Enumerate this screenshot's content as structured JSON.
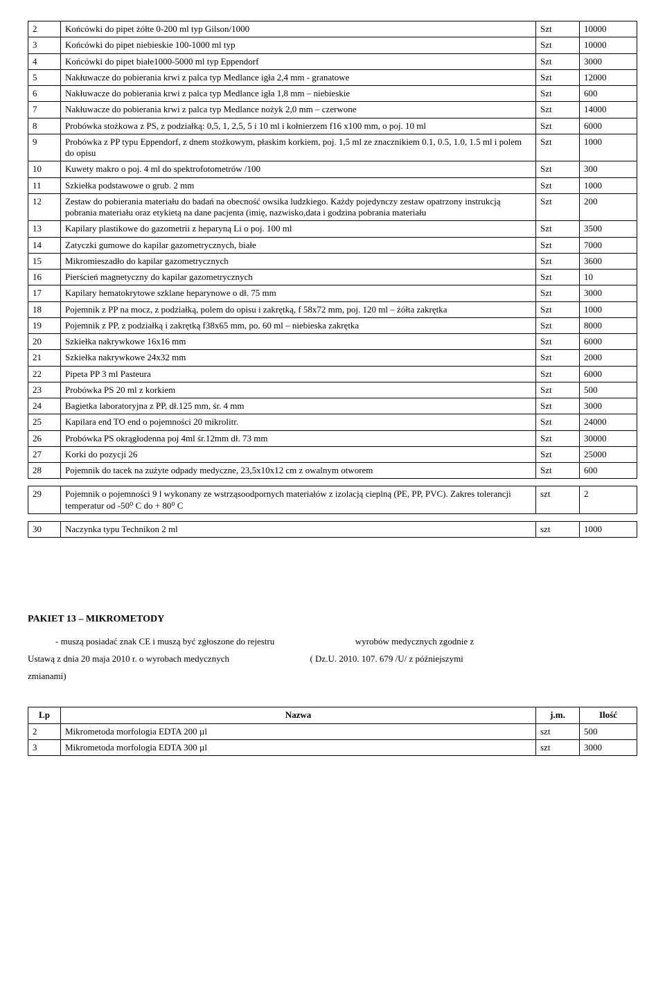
{
  "table1": {
    "unit_label": "Szt",
    "rows": [
      {
        "n": "2",
        "desc": "Końcówki do pipet żółte 0-200 ml typ Gilson/1000",
        "u": "Szt",
        "q": "10000"
      },
      {
        "n": "3",
        "desc": "Końcówki do pipet niebieskie 100-1000 ml typ",
        "u": "Szt",
        "q": "10000"
      },
      {
        "n": "4",
        "desc": "Końcówki do pipet białe1000-5000 ml typ Eppendorf",
        "u": "Szt",
        "q": "3000"
      },
      {
        "n": "5",
        "desc": "Nakłuwacze do pobierania krwi z palca typ Medlance igła\n2,4 mm - granatowe",
        "u": "Szt",
        "q": "12000"
      },
      {
        "n": "6",
        "desc": "Nakłuwacze do pobierania krwi z palca typ Medlance igła\n1,8 mm – niebieskie",
        "u": "Szt",
        "q": "600"
      },
      {
        "n": "7",
        "desc": "Nakłuwacze do pobierania krwi z palca typ Medlance nożyk\n2,0 mm – czerwone",
        "u": "Szt",
        "q": "14000"
      },
      {
        "n": "8",
        "desc": "Probówka stożkowa z PS, z podziałką: 0,5, 1, 2,5, 5 i 10 ml i kołnierzem  f16 x100 mm, o poj. 10 ml",
        "u": "Szt",
        "q": "6000"
      },
      {
        "n": "9",
        "desc": "Probówka z PP typu Eppendorf, z dnem stożkowym, płaskim korkiem, poj. 1,5 ml ze znacznikiem 0.1, 0.5, 1.0, 1.5 ml i polem do opisu",
        "u": "Szt",
        "q": "1000"
      },
      {
        "n": "10",
        "desc": "Kuwety makro o poj. 4 ml do spektrofotometrów /100",
        "u": "Szt",
        "q": "300"
      },
      {
        "n": "11",
        "desc": "Szkiełka podstawowe o grub. 2 mm",
        "u": "Szt",
        "q": "1000"
      },
      {
        "n": "12",
        "desc": "Zestaw do pobierania materiału do badań na obecność owsika ludzkiego. Każdy pojedynczy zestaw opatrzony instrukcją pobrania materiału oraz etykietą na dane pacjenta (imię, nazwisko,data i godzina pobrania materiału",
        "u": "Szt",
        "q": "200"
      },
      {
        "n": "13",
        "desc": "Kapilary plastikowe do gazometrii z heparyną Li o poj. 100 ml",
        "u": "Szt",
        "q": "3500"
      },
      {
        "n": "14",
        "desc": "Zatyczki gumowe do kapilar gazometrycznych, białe",
        "u": "Szt",
        "q": "7000"
      },
      {
        "n": "15",
        "desc": "Mikromieszadło do kapilar gazometrycznych",
        "u": "Szt",
        "q": "3600"
      },
      {
        "n": "16",
        "desc": "Pierścień magnetyczny do kapilar gazometrycznych",
        "u": "Szt",
        "q": "10"
      },
      {
        "n": "17",
        "desc": "Kapilary hematokrytowe szklane heparynowe o dł. 75 mm",
        "u": "Szt",
        "q": "3000"
      },
      {
        "n": "18",
        "desc": "Pojemnik  z PP  na mocz, z podziałką, polem do opisu i zakrętką, f 58x72 mm, poj. 120 ml – żółta zakrętka",
        "u": "Szt",
        "q": "1000"
      },
      {
        "n": "19",
        "desc": "Pojemnik z PP, z podziałką i zakrętką  f38x65 mm, po. 60 ml – niebieska zakrętka",
        "u": "Szt",
        "q": "8000"
      },
      {
        "n": "20",
        "desc": "Szkiełka nakrywkowe 16x16 mm",
        "u": "Szt",
        "q": "6000"
      },
      {
        "n": "21",
        "desc": "Szkiełka nakrywkowe 24x32 mm",
        "u": "Szt",
        "q": "2000"
      },
      {
        "n": "22",
        "desc": "Pipeta PP 3 ml Pasteura",
        "u": "Szt",
        "q": "6000"
      },
      {
        "n": "23",
        "desc": "Probówka PS 20 ml z korkiem",
        "u": "Szt",
        "q": "500"
      },
      {
        "n": "24",
        "desc": "Bagietka laboratoryjna z PP, dł.125 mm, śr. 4 mm",
        "u": "Szt",
        "q": "3000"
      },
      {
        "n": "25",
        "desc": "Kapilara end TO end o pojemności 20 mikrolitr.",
        "u": "Szt",
        "q": "24000"
      },
      {
        "n": "26",
        "desc": "Probówka PS okrągłodenna poj 4ml śr.12mm dł. 73 mm",
        "u": "Szt",
        "q": "30000"
      },
      {
        "n": "27",
        "desc": "Korki do pozycji 26",
        "u": "Szt",
        "q": "25000"
      },
      {
        "n": "28",
        "desc": "Pojemnik do tacek na zużyte odpady medyczne, 23,5x10x12 cm z owalnym otworem",
        "u": "Szt",
        "q": "600"
      }
    ],
    "row29": {
      "n": "29",
      "desc": "Pojemnik o pojemności 9 l wykonany ze wstrząsoodpornych materiałów z izolacją cieplną (PE, PP, PVC). Zakres tolerancji temperatur od -50⁰ C do + 80⁰ C",
      "u": "szt",
      "q": "2"
    },
    "row30": {
      "n": "30",
      "desc": "Naczynka typu Technikon 2 ml",
      "u": "szt",
      "q": "1000"
    }
  },
  "section": {
    "title": "PAKIET 13 – MIKROMETODY",
    "line1a": "- muszą posiadać znak CE i muszą być zgłoszone do rejestru",
    "line1b": "wyrobów medycznych zgodnie z",
    "line2a": "Ustawą z dnia 20 maja 2010 r. o wyrobach medycznych",
    "line2b": "( Dz.U. 2010. 107. 679 /U/ z późniejszymi",
    "line3": "zmianami)"
  },
  "table2": {
    "header": {
      "lp": "Lp",
      "nazwa": "Nazwa",
      "jm": "j.m.",
      "ilosc": "Ilość"
    },
    "rows": [
      {
        "n": "2",
        "desc": "Mikrometoda morfologia EDTA 200 µl",
        "u": "szt",
        "q": "500"
      },
      {
        "n": "3",
        "desc": "Mikrometoda morfologia EDTA 300 µl",
        "u": "szt",
        "q": "3000"
      }
    ]
  }
}
